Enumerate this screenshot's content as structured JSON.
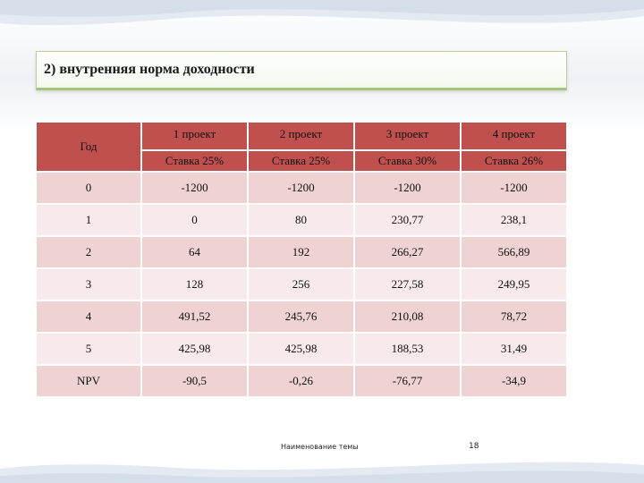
{
  "slide": {
    "title": "2) внутренняя норма доходности",
    "footer": "Наименование темы",
    "page_number": "18"
  },
  "table": {
    "year_header": "Год",
    "projects": [
      {
        "name": "1 проект",
        "rate": "Ставка 25%"
      },
      {
        "name": "2 проект",
        "rate": "Ставка 25%"
      },
      {
        "name": "3 проект",
        "rate": "Ставка 30%"
      },
      {
        "name": "4 проект",
        "rate": "Ставка 26%"
      }
    ],
    "rows": [
      {
        "label": "0",
        "values": [
          "-1200",
          "-1200",
          "-1200",
          "-1200"
        ]
      },
      {
        "label": "1",
        "values": [
          "0",
          "80",
          "230,77",
          "238,1"
        ]
      },
      {
        "label": "2",
        "values": [
          "64",
          "192",
          "266,27",
          "566,89"
        ]
      },
      {
        "label": "3",
        "values": [
          "128",
          "256",
          "227,58",
          "249,95"
        ]
      },
      {
        "label": "4",
        "values": [
          "491,52",
          "245,76",
          "210,08",
          "78,72"
        ]
      },
      {
        "label": "5",
        "values": [
          "425,98",
          "425,98",
          "188,53",
          "31,49"
        ]
      },
      {
        "label": "NPV",
        "values": [
          "-90,5",
          "-0,26",
          "-76,77",
          "-34,9"
        ]
      }
    ]
  },
  "colors": {
    "header": "#c0504d",
    "row_dark": "#efd3d2",
    "row_light": "#f8eaea",
    "title_border": "#a7c47f"
  }
}
